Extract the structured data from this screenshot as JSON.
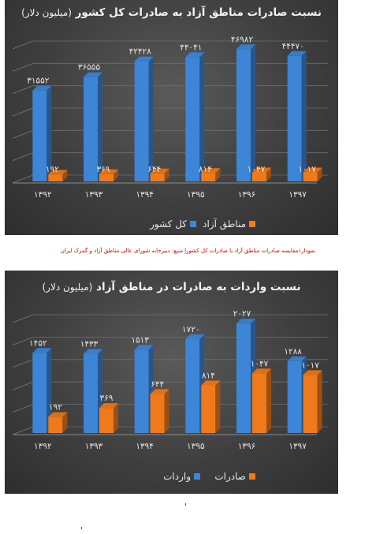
{
  "colors": {
    "series_total": "#3d85d6",
    "series_free": "#f07a1a",
    "text": "#e6e6e6"
  },
  "caption": "نمودار۱مقایسه صادرات مناطق آزاد با صادرات کل کشوراِ منبع: دبیرخانه شورای عالی مناطق آزاد و گمرک ایران",
  "chart_data": [
    {
      "type": "bar",
      "title": "نسبت صادرات مناطق آزاد به صادرات کل کشور",
      "subtitle": "(میلیون دلار)",
      "categories": [
        "۱۳۹۲",
        "۱۳۹۳",
        "۱۳۹۴",
        "۱۳۹۵",
        "۱۳۹۶",
        "۱۳۹۷"
      ],
      "series": [
        {
          "name": "کل کشور",
          "values": [
            31552,
            36555,
            42428,
            44041,
            46982,
            44470
          ],
          "labels": [
            "۳۱۵۵۲",
            "۳۶۵۵۵",
            "۴۲۴۲۸",
            "۴۴۰۴۱",
            "۴۶۹۸۲",
            "۴۴۴۷۰"
          ]
        },
        {
          "name": "مناطق آزاد",
          "values": [
            192,
            369,
            644,
            814,
            1047,
            1017
          ],
          "labels": [
            "۱۹۲",
            "۳۶۹",
            "۶۴۴",
            "۸۱۴",
            "۱۰۴۷",
            "۱۰۱۷"
          ]
        }
      ],
      "ylim": [
        0,
        50000
      ],
      "grid": true,
      "legend": "bottom"
    },
    {
      "type": "bar",
      "title": "نسبت واردات به صادرات در مناطق آزاد",
      "subtitle": "(میلیون دلار)",
      "categories": [
        "۱۳۹۲",
        "۱۳۹۳",
        "۱۳۹۴",
        "۱۳۹۵",
        "۱۳۹۶",
        "۱۳۹۷"
      ],
      "series": [
        {
          "name": "واردات",
          "values": [
            1452,
            1433,
            1513,
            1720,
            2027,
            1288
          ],
          "labels": [
            "۱۴۵۲",
            "۱۴۳۳",
            "۱۵۱۳",
            "۱۷۲۰",
            "۲۰۲۷",
            "۱۲۸۸"
          ]
        },
        {
          "name": "صادرات",
          "values": [
            192,
            369,
            644,
            814,
            1047,
            1017
          ],
          "labels": [
            "۱۹۲",
            "۳۶۹",
            "۶۴۴",
            "۸۱۴",
            "۱۰۴۷",
            "۱۰۱۷"
          ]
        }
      ],
      "ylim": [
        0,
        2200
      ],
      "grid": true,
      "legend": "bottom"
    }
  ]
}
